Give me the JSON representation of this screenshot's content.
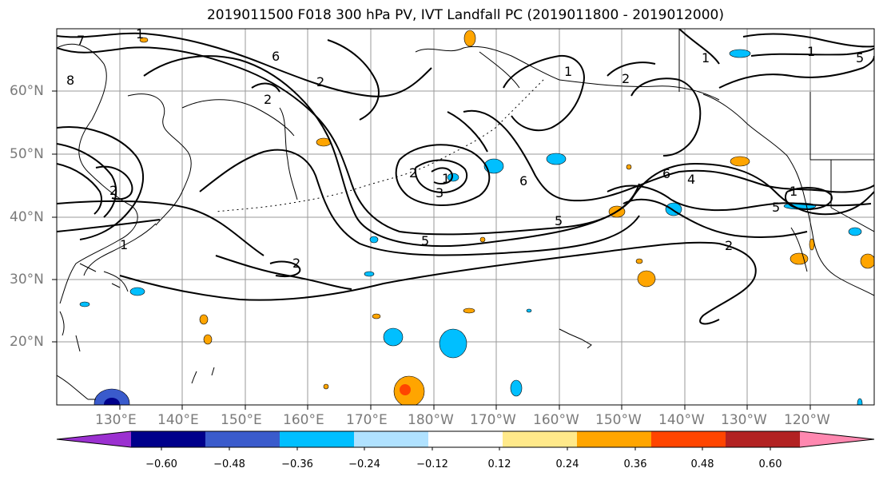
{
  "title": "2019011500 F018 300 hPa PV, IVT Landfall PC (2019011800 - 2019012000)",
  "lat_labels": [
    "60°N",
    "50°N",
    "40°N",
    "30°N",
    "20°N"
  ],
  "lon_labels": [
    "130°E",
    "140°E",
    "150°E",
    "160°E",
    "170°E",
    "180°W",
    "170°W",
    "160°W",
    "150°W",
    "140°W",
    "130°W",
    "120°W"
  ],
  "contour_labels": [
    "7",
    "8",
    "1",
    "6",
    "2",
    "2",
    "1",
    "2",
    "1",
    "3",
    "2",
    "6",
    "6",
    "5",
    "5",
    "5",
    "1",
    "2",
    "5",
    "4",
    "2",
    "1",
    "1",
    "2",
    "1"
  ],
  "colorbar": {
    "ticks": [
      "−0.60",
      "−0.48",
      "−0.36",
      "−0.24",
      "−0.12",
      "0.12",
      "0.24",
      "0.36",
      "0.48",
      "0.60"
    ],
    "colors": [
      "#9b30d0",
      "#00008b",
      "#3a5bcc",
      "#00bfff",
      "#b0e2ff",
      "#ffffff",
      "#ffe98a",
      "#ffa500",
      "#ff4500",
      "#b22222",
      "#ff88b0"
    ]
  }
}
